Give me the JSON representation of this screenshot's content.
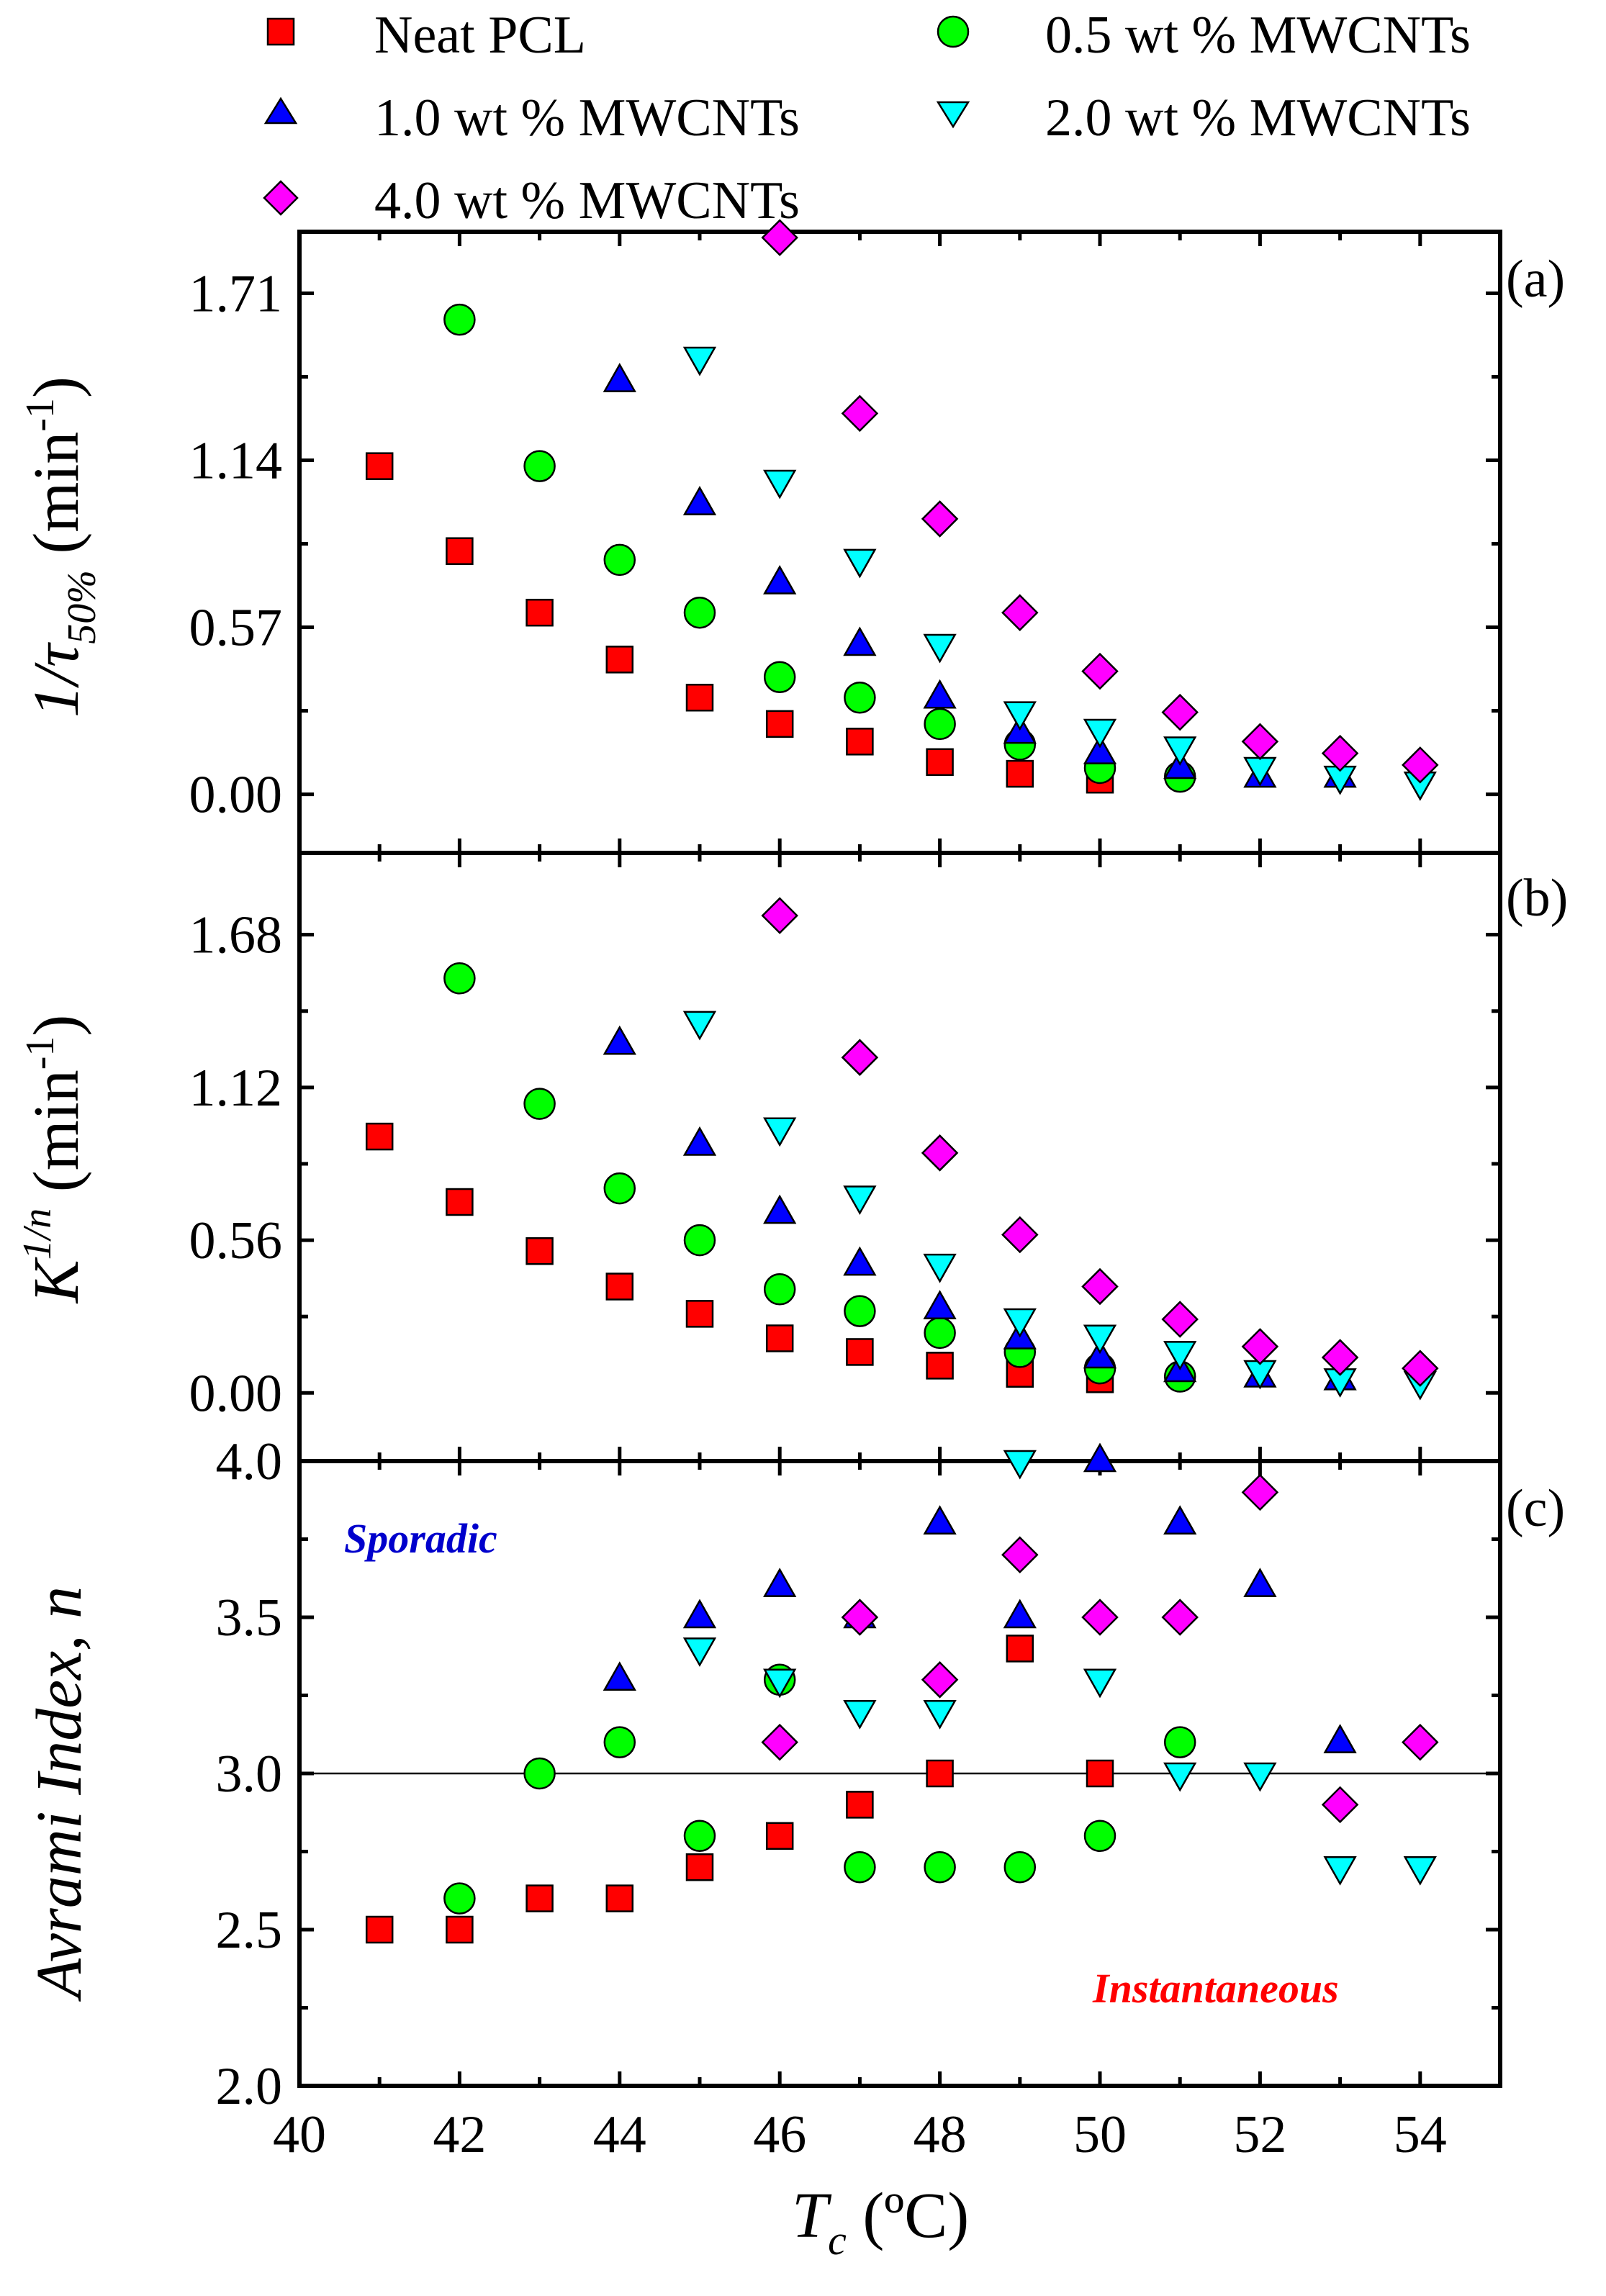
{
  "chart_data": [
    {
      "id": "a",
      "type": "scatter",
      "panel_label": "(a)",
      "ylabel_main": "1/τ",
      "ylabel_sub": "50%",
      "ylabel_units": " (min",
      "ylabel_exp": "-1",
      "ylabel_close": ")",
      "ylim": [
        -0.2,
        1.92
      ],
      "yticks": [
        0.0,
        0.57,
        1.14,
        1.71
      ],
      "ytick_labels": [
        "0.00",
        "0.57",
        "1.14",
        "1.71"
      ],
      "series": [
        {
          "name": "Neat PCL",
          "x": [
            41,
            42,
            43,
            44,
            45,
            46,
            47,
            48,
            49,
            50
          ],
          "values": [
            1.12,
            0.83,
            0.62,
            0.46,
            0.33,
            0.24,
            0.18,
            0.11,
            0.07,
            0.05
          ]
        },
        {
          "name": "0.5 wt % MWCNTs",
          "x": [
            42,
            43,
            44,
            45,
            46,
            47,
            48,
            49,
            50,
            51
          ],
          "values": [
            1.62,
            1.12,
            0.8,
            0.62,
            0.4,
            0.33,
            0.24,
            0.17,
            0.09,
            0.06
          ]
        },
        {
          "name": "1.0 wt % MWCNTs",
          "x": [
            44,
            45,
            46,
            47,
            48,
            49,
            50,
            51,
            52,
            53
          ],
          "values": [
            1.41,
            0.99,
            0.72,
            0.51,
            0.33,
            0.21,
            0.14,
            0.09,
            0.06,
            0.06
          ]
        },
        {
          "name": "2.0 wt % MWCNTs",
          "x": [
            45,
            46,
            47,
            48,
            49,
            50,
            51,
            52,
            53,
            54
          ],
          "values": [
            1.49,
            1.07,
            0.8,
            0.51,
            0.28,
            0.22,
            0.16,
            0.09,
            0.06,
            0.04
          ]
        },
        {
          "name": "4.0 wt % MWCNTs",
          "x": [
            46,
            47,
            48,
            49,
            50,
            51,
            52,
            53,
            54
          ],
          "values": [
            1.9,
            1.3,
            0.94,
            0.62,
            0.42,
            0.28,
            0.18,
            0.14,
            0.1
          ]
        }
      ]
    },
    {
      "id": "b",
      "type": "scatter",
      "panel_label": "(b)",
      "ylabel_main": "K",
      "ylabel_sup": "1/n",
      "ylabel_units": " (min",
      "ylabel_exp": "-1",
      "ylabel_close": ")",
      "ylim": [
        -0.25,
        1.98
      ],
      "yticks": [
        0.0,
        0.56,
        1.12,
        1.68
      ],
      "ytick_labels": [
        "0.00",
        "0.56",
        "1.12",
        "1.68"
      ],
      "series": [
        {
          "name": "Neat PCL",
          "x": [
            41,
            42,
            43,
            44,
            45,
            46,
            47,
            48,
            49,
            50
          ],
          "values": [
            0.94,
            0.7,
            0.52,
            0.39,
            0.29,
            0.2,
            0.15,
            0.1,
            0.07,
            0.05
          ]
        },
        {
          "name": "0.5 wt % MWCNTs",
          "x": [
            42,
            43,
            44,
            45,
            46,
            47,
            48,
            49,
            50,
            51
          ],
          "values": [
            1.52,
            1.06,
            0.75,
            0.56,
            0.38,
            0.3,
            0.22,
            0.15,
            0.09,
            0.06
          ]
        },
        {
          "name": "1.0 wt % MWCNTs",
          "x": [
            44,
            45,
            46,
            47,
            48,
            49,
            50,
            51,
            52,
            53
          ],
          "values": [
            1.28,
            0.91,
            0.66,
            0.47,
            0.31,
            0.2,
            0.13,
            0.08,
            0.06,
            0.05
          ]
        },
        {
          "name": "2.0 wt % MWCNTs",
          "x": [
            45,
            46,
            47,
            48,
            49,
            50,
            51,
            52,
            53,
            54
          ],
          "values": [
            1.36,
            0.97,
            0.72,
            0.47,
            0.27,
            0.21,
            0.15,
            0.08,
            0.05,
            0.04
          ]
        },
        {
          "name": "4.0 wt % MWCNTs",
          "x": [
            46,
            47,
            48,
            49,
            50,
            51,
            52,
            53,
            54
          ],
          "values": [
            1.75,
            1.23,
            0.88,
            0.58,
            0.39,
            0.27,
            0.17,
            0.13,
            0.09
          ]
        }
      ]
    },
    {
      "id": "c",
      "type": "scatter",
      "panel_label": "(c)",
      "ylabel_main": "Avrami Index, n",
      "ylim": [
        2.0,
        4.0
      ],
      "yticks": [
        2.0,
        2.5,
        3.0,
        3.5,
        4.0
      ],
      "ytick_labels": [
        "2.0",
        "2.5",
        "3.0",
        "3.5",
        "4.0"
      ],
      "reference_line": 3.0,
      "annotations": [
        {
          "text": "Sporadic",
          "color": "#0000cc"
        },
        {
          "text": "Instantaneous",
          "color": "#ff0000"
        }
      ],
      "series": [
        {
          "name": "Neat PCL",
          "x": [
            41,
            42,
            43,
            44,
            45,
            46,
            47,
            48,
            49,
            50
          ],
          "values": [
            2.5,
            2.5,
            2.6,
            2.6,
            2.7,
            2.8,
            2.9,
            3.0,
            3.4,
            3.0
          ]
        },
        {
          "name": "0.5 wt % MWCNTs",
          "x": [
            42,
            43,
            44,
            45,
            46,
            47,
            48,
            49,
            50,
            51
          ],
          "values": [
            2.6,
            3.0,
            3.1,
            2.8,
            3.3,
            2.7,
            2.7,
            2.7,
            2.8,
            3.1
          ]
        },
        {
          "name": "1.0 wt % MWCNTs",
          "x": [
            44,
            45,
            46,
            47,
            48,
            49,
            50,
            51,
            52,
            53
          ],
          "values": [
            3.3,
            3.5,
            3.6,
            3.5,
            3.8,
            3.5,
            4.0,
            3.8,
            3.6,
            3.1
          ]
        },
        {
          "name": "2.0 wt % MWCNTs",
          "x": [
            45,
            46,
            47,
            48,
            49,
            50,
            51,
            52,
            53,
            54
          ],
          "values": [
            3.4,
            3.3,
            3.2,
            3.2,
            4.0,
            3.3,
            3.0,
            3.0,
            2.7,
            2.7
          ]
        },
        {
          "name": "4.0 wt % MWCNTs",
          "x": [
            46,
            47,
            48,
            49,
            50,
            51,
            52,
            53,
            54
          ],
          "values": [
            3.1,
            3.5,
            3.3,
            3.7,
            3.5,
            3.5,
            3.9,
            2.9,
            3.1
          ]
        }
      ]
    }
  ],
  "shared_x": {
    "xlim": [
      40,
      55
    ],
    "xticks": [
      40,
      42,
      44,
      46,
      48,
      50,
      52,
      54
    ],
    "xtick_labels": [
      "40",
      "42",
      "44",
      "46",
      "48",
      "50",
      "52",
      "54"
    ],
    "xlabel_main": "T",
    "xlabel_sub": "c",
    "xlabel_units": " (ºC)"
  },
  "legend": {
    "placement": "top",
    "entries": [
      {
        "label": "Neat PCL",
        "marker": "square",
        "color": "#ff0000"
      },
      {
        "label": "0.5 wt % MWCNTs",
        "marker": "circle",
        "color": "#00ff00"
      },
      {
        "label": "1.0 wt % MWCNTs",
        "marker": "triangle-up",
        "color": "#0000ff"
      },
      {
        "label": "2.0 wt % MWCNTs",
        "marker": "triangle-down",
        "color": "#00ffff"
      },
      {
        "label": "4.0 wt % MWCNTs",
        "marker": "diamond",
        "color": "#ff00ff"
      }
    ]
  }
}
